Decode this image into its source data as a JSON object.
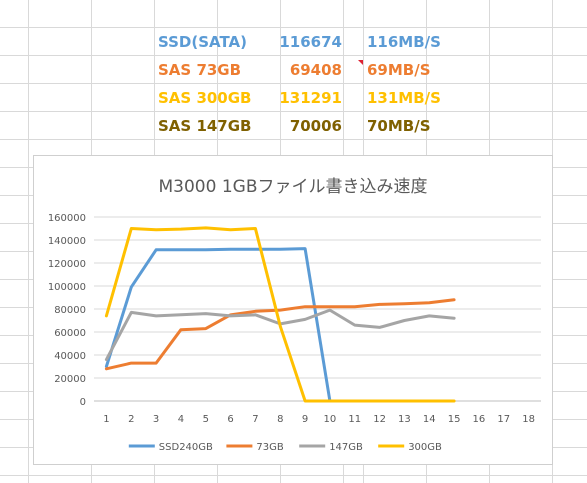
{
  "table": {
    "rows": [
      {
        "name": "SSD(SATA)",
        "value": "116674",
        "speed": "116MB/S",
        "color": "#5b9bd5"
      },
      {
        "name": "SAS 73GB",
        "value": "69408",
        "speed": "69MB/S",
        "color": "#ed7d31"
      },
      {
        "name": "SAS 300GB",
        "value": "131291",
        "speed": "131MB/S",
        "color": "#ffc000"
      },
      {
        "name": "SAS 147GB",
        "value": "70006",
        "speed": "70MB/S",
        "color": "#7f6000"
      }
    ]
  },
  "chart_data": {
    "type": "line",
    "title": "M3000  1GBファイル書き込み速度",
    "xlabel": "",
    "ylabel": "",
    "x": [
      1,
      2,
      3,
      4,
      5,
      6,
      7,
      8,
      9,
      10,
      11,
      12,
      13,
      14,
      15,
      16,
      17,
      18
    ],
    "ylim": [
      0,
      160000
    ],
    "yticks": [
      0,
      20000,
      40000,
      60000,
      80000,
      100000,
      120000,
      140000,
      160000
    ],
    "grid": true,
    "legend_position": "bottom",
    "series": [
      {
        "name": "SSD240GB",
        "color": "#5b9bd5",
        "values": [
          30000,
          99000,
          131500,
          131500,
          131500,
          132000,
          132000,
          132000,
          132500,
          0,
          null,
          null,
          null,
          null,
          null,
          null,
          null,
          null
        ]
      },
      {
        "name": "73GB",
        "color": "#ed7d31",
        "values": [
          28000,
          33000,
          33000,
          62000,
          63000,
          75000,
          78000,
          79000,
          82000,
          82000,
          82000,
          84000,
          84500,
          85500,
          88000,
          null,
          null,
          null
        ]
      },
      {
        "name": "147GB",
        "color": "#a5a5a5",
        "values": [
          36000,
          77000,
          74000,
          75000,
          76000,
          74000,
          75000,
          67000,
          71000,
          79000,
          66000,
          64000,
          70000,
          74000,
          72000,
          null,
          null,
          null
        ]
      },
      {
        "name": "300GB",
        "color": "#ffc000",
        "values": [
          74000,
          150000,
          149000,
          149500,
          150500,
          149000,
          150000,
          65000,
          0,
          0,
          0,
          0,
          0,
          0,
          0,
          null,
          null,
          null
        ]
      }
    ]
  }
}
